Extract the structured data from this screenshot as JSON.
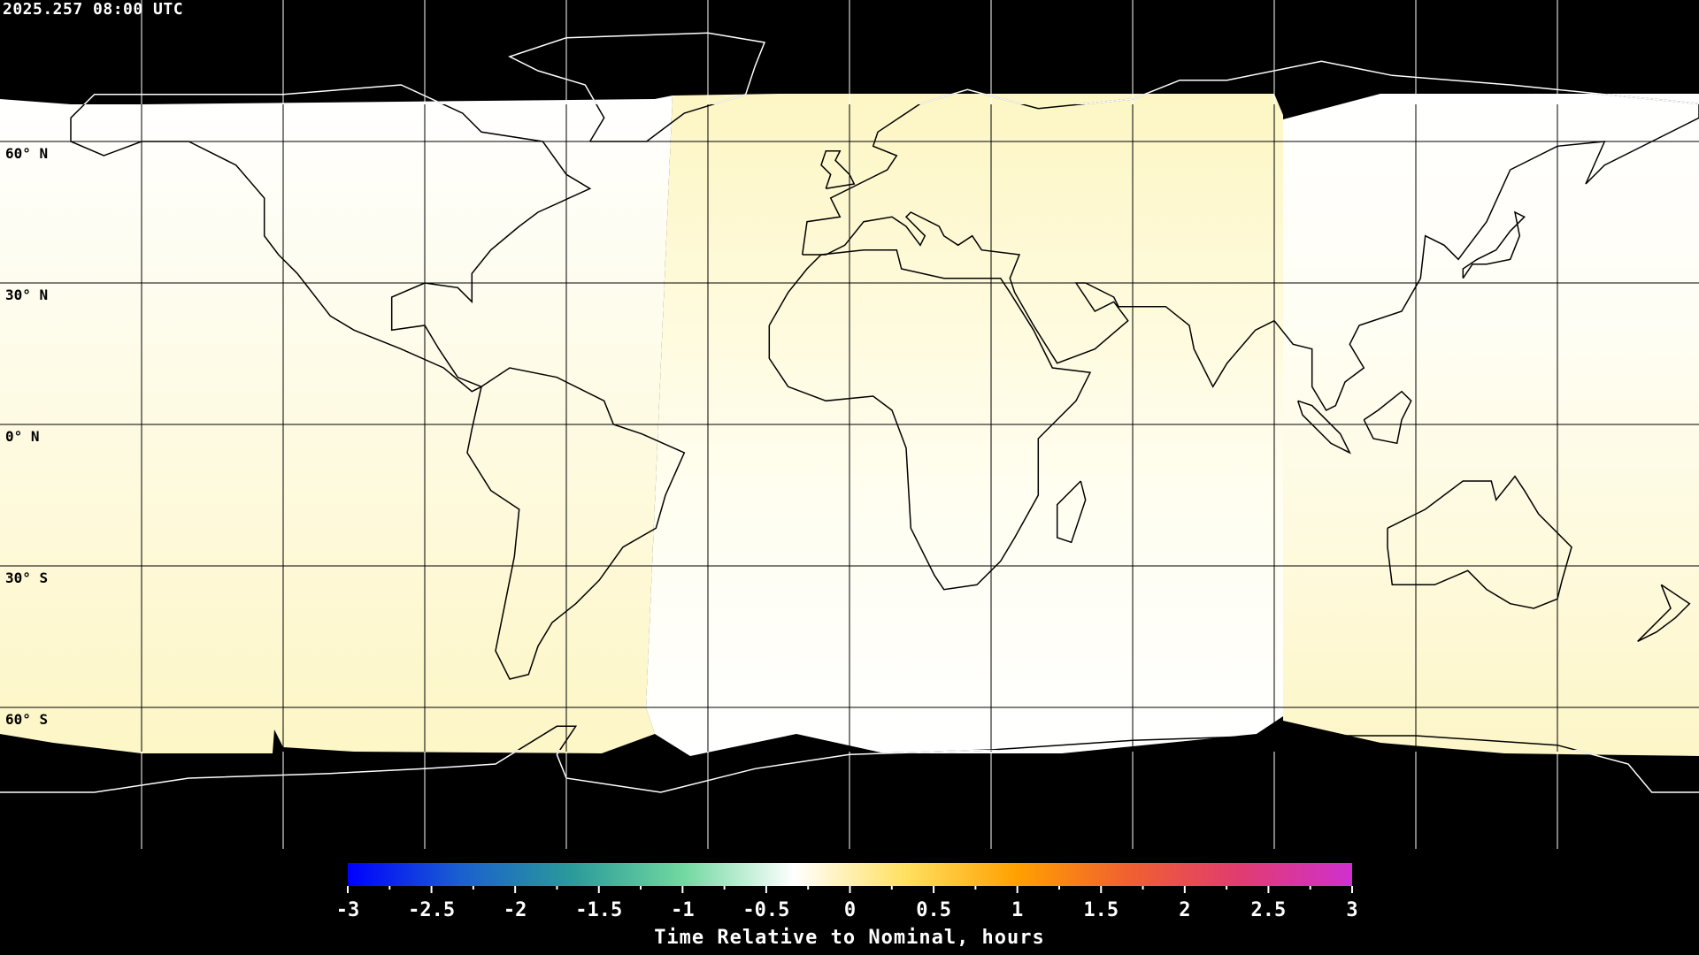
{
  "title": "2025.257 08:00 UTC",
  "latitude_labels": [
    "60° N",
    "30° N",
    "0° N",
    "30° S",
    "60° S"
  ],
  "map": {
    "projection": "equirectangular",
    "gridlines_lon_step_deg": 30,
    "gridlines_lat_step_deg": 30,
    "no_data_color": "#000000",
    "coastline_color_on_data": "#000000",
    "coastline_color_on_nodata": "#ffffff"
  },
  "colorbar": {
    "title": "Time Relative to Nominal, hours",
    "min": -3,
    "max": 3,
    "tick_labels": [
      "-3",
      "-2.5",
      "-2",
      "-1.5",
      "-1",
      "-0.5",
      "0",
      "0.5",
      "1",
      "1.5",
      "2",
      "2.5",
      "3"
    ],
    "colors": [
      "#0000ff",
      "#1a5fd0",
      "#2a9a9a",
      "#70d8a0",
      "#ffffff",
      "#ffe060",
      "#ffa000",
      "#f06030",
      "#e03c70",
      "#d030d0"
    ]
  }
}
